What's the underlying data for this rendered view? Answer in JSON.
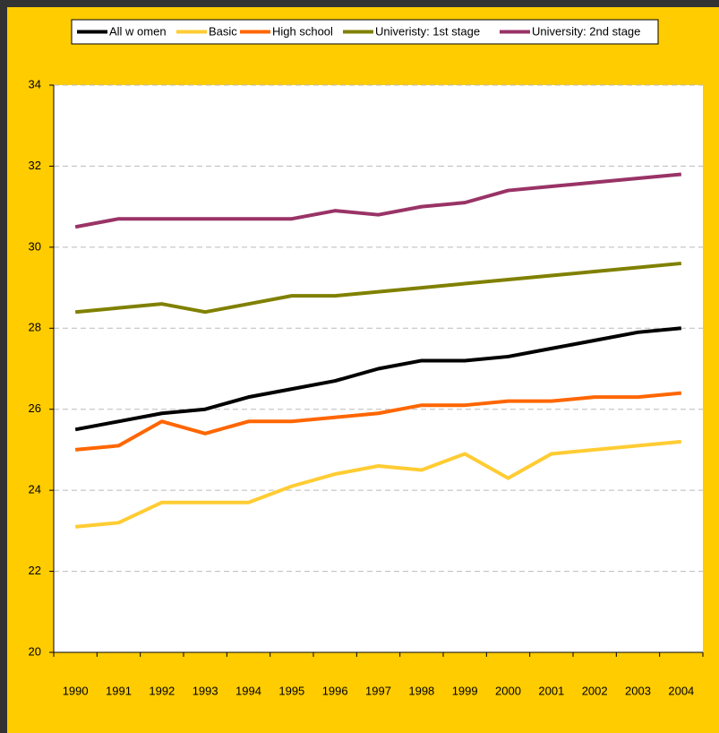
{
  "chart_data": {
    "type": "line",
    "categories": [
      "1990",
      "1991",
      "1992",
      "1993",
      "1994",
      "1995",
      "1996",
      "1997",
      "1998",
      "1999",
      "2000",
      "2001",
      "2002",
      "2003",
      "2004"
    ],
    "series": [
      {
        "name": "All w omen",
        "color": "#000000",
        "values": [
          25.5,
          25.7,
          25.9,
          26.0,
          26.3,
          26.5,
          26.7,
          27.0,
          27.2,
          27.2,
          27.3,
          27.5,
          27.7,
          27.9,
          28.0
        ]
      },
      {
        "name": "Basic",
        "color": "#FFCC33",
        "values": [
          23.1,
          23.2,
          23.7,
          23.7,
          23.7,
          24.1,
          24.4,
          24.6,
          24.5,
          24.9,
          24.3,
          24.9,
          25.0,
          25.1,
          25.2
        ]
      },
      {
        "name": "High school",
        "color": "#FF6600",
        "values": [
          25.0,
          25.1,
          25.7,
          25.4,
          25.7,
          25.7,
          25.8,
          25.9,
          26.1,
          26.1,
          26.2,
          26.2,
          26.3,
          26.3,
          26.4
        ]
      },
      {
        "name": "Univeristy: 1st stage",
        "color": "#808000",
        "values": [
          28.4,
          28.5,
          28.6,
          28.4,
          28.6,
          28.8,
          28.8,
          28.9,
          29.0,
          29.1,
          29.2,
          29.3,
          29.4,
          29.5,
          29.6
        ]
      },
      {
        "name": "University: 2nd stage",
        "color": "#993366",
        "values": [
          30.5,
          30.7,
          30.7,
          30.7,
          30.7,
          30.7,
          30.9,
          30.8,
          31.0,
          31.1,
          31.4,
          31.5,
          31.6,
          31.7,
          31.8
        ]
      }
    ],
    "ylim": [
      20,
      34
    ],
    "yticks": [
      20,
      22,
      24,
      26,
      28,
      30,
      32,
      34
    ],
    "grid": true,
    "legend": "top"
  }
}
